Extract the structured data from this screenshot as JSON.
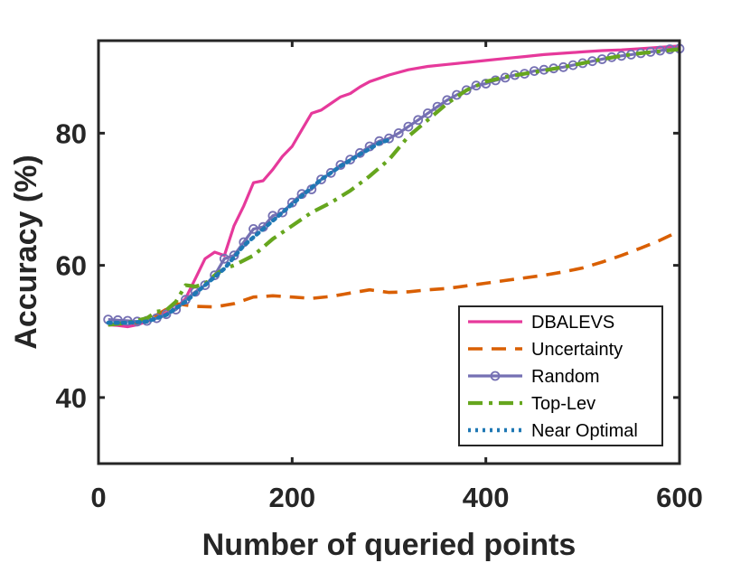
{
  "chart_data": {
    "type": "line",
    "title": "",
    "xlabel": "Number of queried points",
    "ylabel": "Accuracy (%)",
    "xlim": [
      0,
      600
    ],
    "ylim": [
      30,
      94
    ],
    "xticks": [
      0,
      200,
      400,
      600
    ],
    "yticks": [
      40,
      60,
      80
    ],
    "grid": false,
    "legend_position": "bottom-right",
    "series": [
      {
        "name": "DBALEVS",
        "color": "#e6399b",
        "dash": "solid",
        "marker": "none",
        "points": [
          [
            10,
            51
          ],
          [
            20,
            50.9
          ],
          [
            30,
            50.7
          ],
          [
            40,
            51
          ],
          [
            50,
            51.5
          ],
          [
            60,
            52
          ],
          [
            70,
            52.8
          ],
          [
            80,
            53.5
          ],
          [
            90,
            55
          ],
          [
            100,
            58
          ],
          [
            110,
            61
          ],
          [
            120,
            62
          ],
          [
            130,
            61.5
          ],
          [
            140,
            66
          ],
          [
            150,
            69
          ],
          [
            160,
            72.5
          ],
          [
            170,
            72.8
          ],
          [
            180,
            74.5
          ],
          [
            190,
            76.5
          ],
          [
            200,
            78
          ],
          [
            210,
            80.5
          ],
          [
            220,
            83
          ],
          [
            230,
            83.5
          ],
          [
            240,
            84.5
          ],
          [
            250,
            85.5
          ],
          [
            260,
            86
          ],
          [
            270,
            87
          ],
          [
            280,
            87.8
          ],
          [
            300,
            88.8
          ],
          [
            320,
            89.6
          ],
          [
            340,
            90.1
          ],
          [
            360,
            90.4
          ],
          [
            380,
            90.7
          ],
          [
            400,
            91
          ],
          [
            420,
            91.3
          ],
          [
            440,
            91.6
          ],
          [
            460,
            91.9
          ],
          [
            480,
            92.1
          ],
          [
            500,
            92.3
          ],
          [
            520,
            92.5
          ],
          [
            540,
            92.6
          ],
          [
            560,
            92.8
          ],
          [
            580,
            93
          ],
          [
            600,
            93.2
          ]
        ]
      },
      {
        "name": "Uncertainty",
        "color": "#d95f02",
        "dash": "dashed",
        "marker": "none",
        "points": [
          [
            10,
            51
          ],
          [
            40,
            51.3
          ],
          [
            60,
            52.5
          ],
          [
            80,
            54.2
          ],
          [
            100,
            53.8
          ],
          [
            120,
            53.7
          ],
          [
            140,
            54.2
          ],
          [
            160,
            55.2
          ],
          [
            180,
            55.4
          ],
          [
            200,
            55.2
          ],
          [
            220,
            55
          ],
          [
            240,
            55.3
          ],
          [
            260,
            55.8
          ],
          [
            280,
            56.3
          ],
          [
            300,
            55.9
          ],
          [
            320,
            56
          ],
          [
            340,
            56.3
          ],
          [
            360,
            56.5
          ],
          [
            380,
            56.9
          ],
          [
            400,
            57.3
          ],
          [
            420,
            57.7
          ],
          [
            440,
            58.1
          ],
          [
            460,
            58.5
          ],
          [
            480,
            59
          ],
          [
            500,
            59.6
          ],
          [
            520,
            60.5
          ],
          [
            540,
            61.5
          ],
          [
            560,
            62.6
          ],
          [
            580,
            63.8
          ],
          [
            600,
            65.2
          ]
        ]
      },
      {
        "name": "Random",
        "color": "#7570b3",
        "dash": "solid",
        "marker": "circle",
        "points": [
          [
            10,
            51.8
          ],
          [
            20,
            51.7
          ],
          [
            30,
            51.6
          ],
          [
            40,
            51.5
          ],
          [
            50,
            51.6
          ],
          [
            60,
            52
          ],
          [
            70,
            52.6
          ],
          [
            80,
            53.3
          ],
          [
            90,
            54.8
          ],
          [
            100,
            56
          ],
          [
            110,
            57
          ],
          [
            120,
            58.5
          ],
          [
            130,
            61
          ],
          [
            140,
            61.5
          ],
          [
            150,
            63.5
          ],
          [
            160,
            65.5
          ],
          [
            170,
            65.8
          ],
          [
            180,
            67.5
          ],
          [
            190,
            68
          ],
          [
            200,
            69.5
          ],
          [
            210,
            70.8
          ],
          [
            220,
            71.5
          ],
          [
            230,
            73
          ],
          [
            240,
            74
          ],
          [
            250,
            75.2
          ],
          [
            260,
            76
          ],
          [
            270,
            77
          ],
          [
            280,
            78
          ],
          [
            290,
            78.8
          ],
          [
            300,
            79.2
          ],
          [
            310,
            80
          ],
          [
            320,
            81
          ],
          [
            330,
            82
          ],
          [
            340,
            83
          ],
          [
            350,
            84
          ],
          [
            360,
            85
          ],
          [
            370,
            85.8
          ],
          [
            380,
            86.5
          ],
          [
            390,
            87.2
          ],
          [
            400,
            87.5
          ],
          [
            410,
            88
          ],
          [
            420,
            88.4
          ],
          [
            430,
            88.8
          ],
          [
            440,
            89
          ],
          [
            450,
            89.4
          ],
          [
            460,
            89.6
          ],
          [
            470,
            89.8
          ],
          [
            480,
            90
          ],
          [
            490,
            90.3
          ],
          [
            500,
            90.6
          ],
          [
            510,
            90.9
          ],
          [
            520,
            91.2
          ],
          [
            530,
            91.5
          ],
          [
            540,
            91.7
          ],
          [
            550,
            91.9
          ],
          [
            560,
            92.1
          ],
          [
            570,
            92.3
          ],
          [
            580,
            92.5
          ],
          [
            590,
            92.7
          ],
          [
            600,
            92.8
          ]
        ]
      },
      {
        "name": "Top-Lev",
        "color": "#66a61e",
        "dash": "dashdot",
        "marker": "none",
        "points": [
          [
            10,
            51
          ],
          [
            30,
            51.3
          ],
          [
            50,
            52
          ],
          [
            60,
            53
          ],
          [
            70,
            53.2
          ],
          [
            80,
            54.5
          ],
          [
            90,
            57
          ],
          [
            100,
            56.8
          ],
          [
            110,
            57.2
          ],
          [
            120,
            58.5
          ],
          [
            130,
            59.5
          ],
          [
            140,
            60
          ],
          [
            160,
            61.5
          ],
          [
            180,
            64
          ],
          [
            200,
            66
          ],
          [
            220,
            68
          ],
          [
            240,
            69.5
          ],
          [
            260,
            71.3
          ],
          [
            280,
            73.5
          ],
          [
            300,
            76
          ],
          [
            320,
            79.5
          ],
          [
            340,
            82
          ],
          [
            360,
            84.5
          ],
          [
            380,
            86.5
          ],
          [
            400,
            87.8
          ],
          [
            420,
            88.5
          ],
          [
            440,
            89
          ],
          [
            460,
            89.5
          ],
          [
            480,
            90
          ],
          [
            500,
            90.6
          ],
          [
            520,
            91.2
          ],
          [
            540,
            91.7
          ],
          [
            560,
            92.1
          ],
          [
            580,
            92.4
          ],
          [
            600,
            92.7
          ]
        ]
      },
      {
        "name": "Near Optimal",
        "color": "#1f78b4",
        "dash": "dotted",
        "marker": "none",
        "points": [
          [
            10,
            51.3
          ],
          [
            30,
            51.3
          ],
          [
            50,
            51.5
          ],
          [
            70,
            52.5
          ],
          [
            90,
            54.5
          ],
          [
            110,
            57
          ],
          [
            130,
            59.5
          ],
          [
            150,
            63
          ],
          [
            170,
            65.5
          ],
          [
            190,
            68
          ],
          [
            210,
            70.5
          ],
          [
            230,
            73
          ],
          [
            250,
            75
          ],
          [
            270,
            76.8
          ],
          [
            290,
            78.5
          ],
          [
            300,
            79
          ]
        ]
      }
    ]
  }
}
